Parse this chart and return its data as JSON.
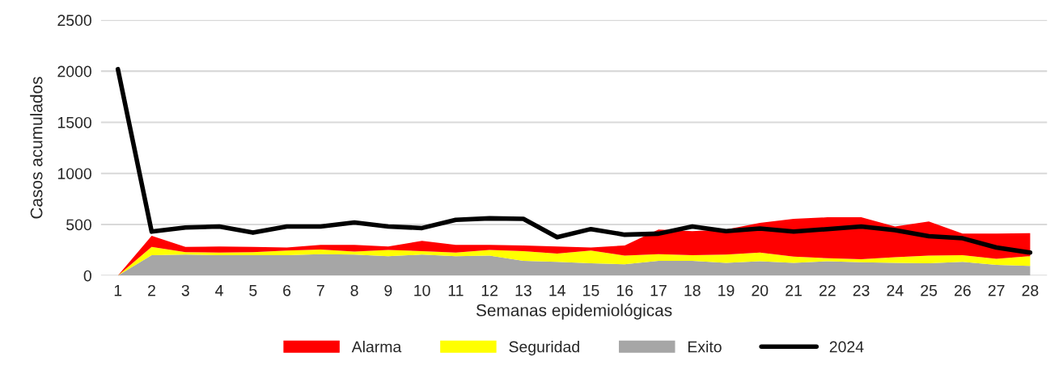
{
  "chart_data": {
    "type": "area",
    "stacked": true,
    "xlabel": "Semanas epidemiológicas",
    "ylabel": "Casos acumulados",
    "categories": [
      "1",
      "2",
      "3",
      "4",
      "5",
      "6",
      "7",
      "8",
      "9",
      "10",
      "11",
      "12",
      "13",
      "14",
      "15",
      "16",
      "17",
      "18",
      "19",
      "20",
      "21",
      "22",
      "23",
      "24",
      "25",
      "26",
      "27",
      "28"
    ],
    "series": [
      {
        "name": "Exito",
        "color": "#a6a6a6",
        "values": [
          0,
          200,
          205,
          200,
          200,
          200,
          210,
          205,
          190,
          205,
          190,
          195,
          145,
          135,
          120,
          110,
          145,
          145,
          125,
          140,
          125,
          140,
          130,
          125,
          120,
          135,
          105,
          95
        ]
      },
      {
        "name": "Seguridad",
        "color": "#ffff00",
        "values": [
          0,
          80,
          25,
          25,
          30,
          45,
          45,
          30,
          60,
          35,
          35,
          55,
          95,
          80,
          125,
          85,
          65,
          55,
          80,
          85,
          60,
          30,
          30,
          55,
          75,
          65,
          60,
          95
        ]
      },
      {
        "name": "Alarma",
        "color": "#ff0000",
        "values": [
          0,
          110,
          50,
          60,
          50,
          30,
          45,
          65,
          35,
          100,
          75,
          50,
          55,
          70,
          30,
          100,
          240,
          235,
          245,
          290,
          370,
          400,
          410,
          300,
          335,
          210,
          245,
          225
        ]
      },
      {
        "name": "2024",
        "type": "line",
        "color": "#000000",
        "values": [
          2020,
          430,
          470,
          480,
          420,
          480,
          480,
          520,
          480,
          465,
          545,
          560,
          555,
          375,
          455,
          400,
          410,
          480,
          435,
          460,
          430,
          455,
          480,
          445,
          385,
          365,
          275,
          225
        ]
      }
    ],
    "ylim": [
      0,
      2500
    ],
    "yticks": [
      0,
      500,
      1000,
      1500,
      2000,
      2500
    ],
    "grid": "y",
    "legend": "bottom",
    "marker": "none",
    "line_style": "solid"
  }
}
